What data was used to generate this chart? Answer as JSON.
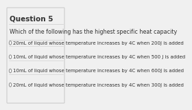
{
  "title": "Question 5",
  "question": "Which of the following has the highest specific heat capacity",
  "options": [
    "20mL of liquid whose temperature increases by 4C when 200J is added",
    "10mL of liquid whose temperature increases by 4C when 500 J is added",
    "10mL of liquid whose temperature increases by 4C when 600J is added",
    "20mL of liquid whose temperature increases by 4C when 300J is added"
  ],
  "bg_color": "#f0f0f0",
  "border_color": "#cccccc",
  "title_fontsize": 7.5,
  "question_fontsize": 5.8,
  "option_fontsize": 5.0,
  "text_color": "#333333",
  "circle_color": "#888888"
}
